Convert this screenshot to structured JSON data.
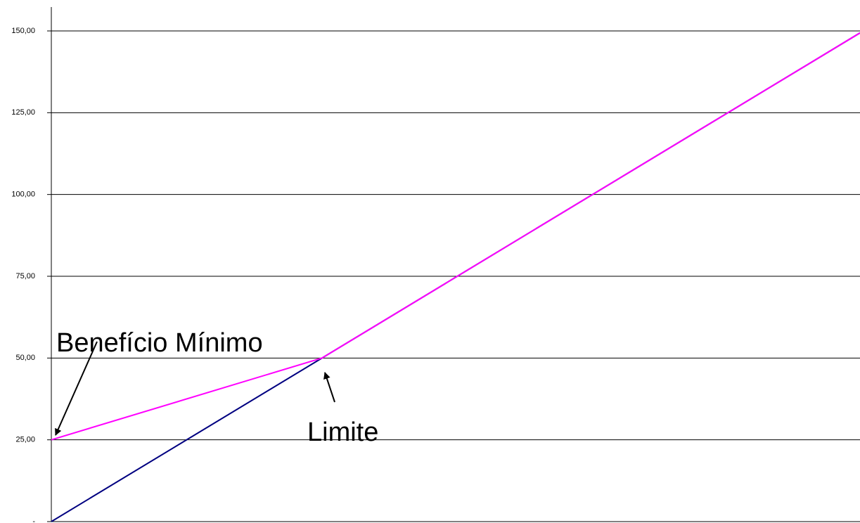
{
  "chart_data": {
    "type": "line",
    "x": [
      0,
      50,
      149.4
    ],
    "xlim": [
      0,
      149.4
    ],
    "ylim": [
      0,
      150
    ],
    "yticks": [
      {
        "value": 0,
        "label": "-"
      },
      {
        "value": 25,
        "label": "25,00"
      },
      {
        "value": 50,
        "label": "50,00"
      },
      {
        "value": 75,
        "label": "75,00"
      },
      {
        "value": 100,
        "label": "100,00"
      },
      {
        "value": 125,
        "label": "125,00"
      },
      {
        "value": 150,
        "label": "150,00"
      }
    ],
    "grid": true,
    "series": [
      {
        "color": "#000080",
        "values": [
          0,
          50,
          149.4
        ]
      },
      {
        "color": "#ff00ff",
        "values": [
          25,
          50,
          149.4
        ]
      }
    ],
    "annotations": [
      "Benefício Mínimo",
      "Limite"
    ]
  }
}
